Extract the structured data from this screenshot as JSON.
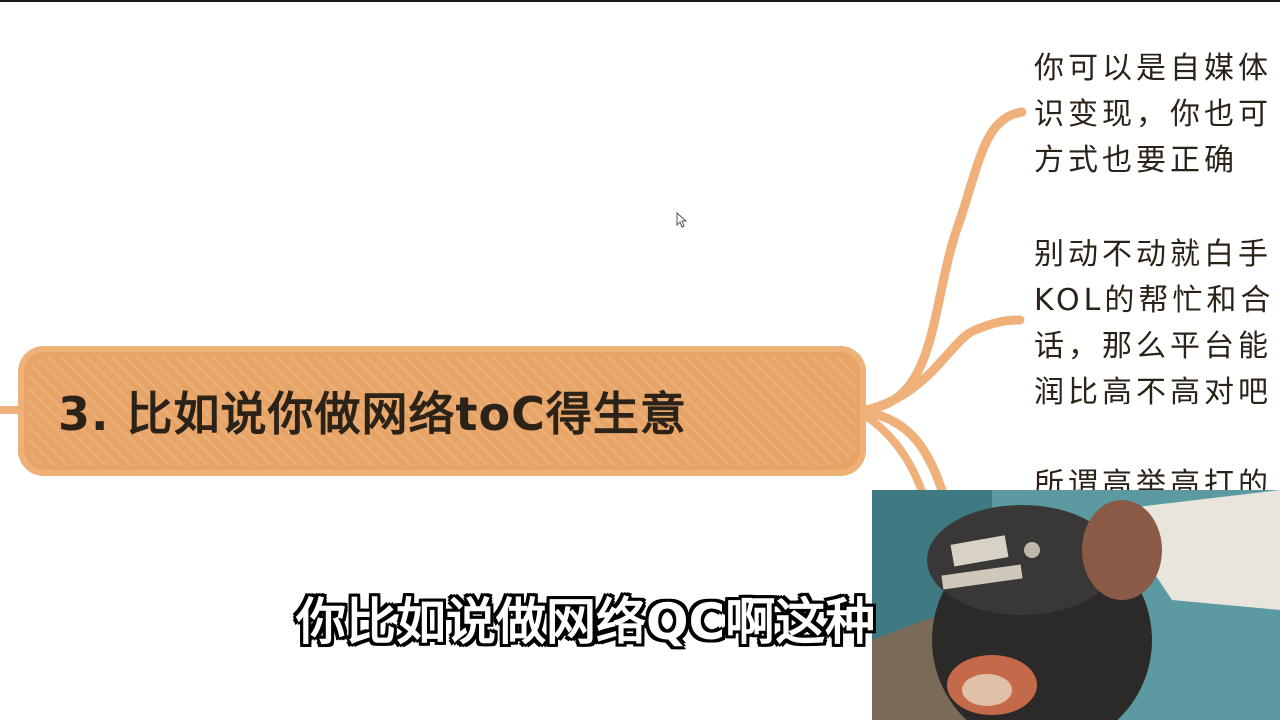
{
  "mindmap": {
    "main_node": {
      "title": "3. 比如说你做网络toC得生意"
    },
    "branches": [
      {
        "lines": [
          "你可以是自媒体",
          "识变现，你也可",
          "方式也要正确"
        ]
      },
      {
        "lines": [
          "别动不动就白手",
          "KOL的帮忙和合",
          "话，那么平台能",
          "润比高不高对吧"
        ]
      },
      {
        "lines": [
          "所谓高举高打的"
        ]
      }
    ]
  },
  "subtitle": {
    "text": "你比如说做网络QC啊这种"
  },
  "colors": {
    "node_fill": "#e8a466",
    "branch_line": "#f0b07a",
    "text": "#2b2218",
    "background": "#ffffff"
  },
  "icons": {
    "cursor": "mouse-pointer-icon"
  }
}
